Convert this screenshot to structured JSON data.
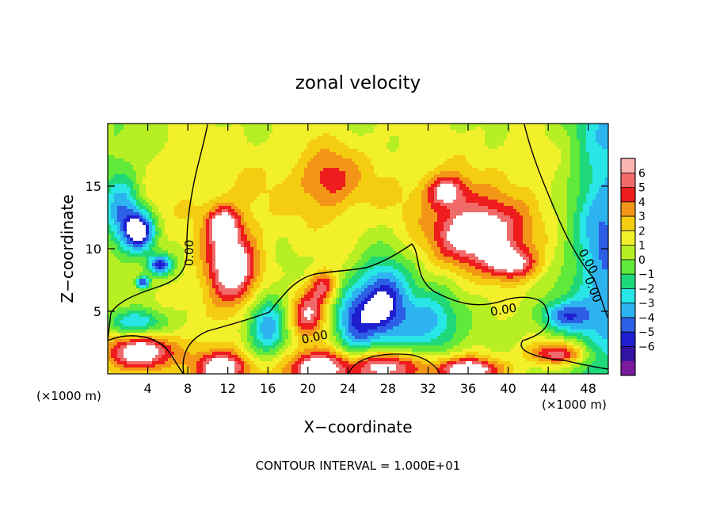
{
  "chart_data": {
    "type": "heatmap",
    "title": "zonal velocity",
    "xlabel": "X−coordinate",
    "ylabel": "Z−coordinate",
    "x_unit_left": "(×1000 m)",
    "x_unit_right": "(×1000 m)",
    "xlim": [
      0,
      50
    ],
    "ylim": [
      0,
      20
    ],
    "x_ticks": [
      4,
      8,
      12,
      16,
      20,
      24,
      28,
      32,
      36,
      40,
      44,
      48
    ],
    "y_ticks": [
      5,
      10,
      15
    ],
    "footer": "CONTOUR INTERVAL = 1.000E+01",
    "contour_labels": [
      "0.00",
      "0.00",
      "0.00",
      "0.00",
      "0.00"
    ],
    "colorbar": {
      "ticks": [
        6,
        5,
        4,
        3,
        2,
        1,
        0,
        -1,
        -2,
        -3,
        -4,
        -5,
        -6
      ],
      "tick_labels": [
        "6",
        "5",
        "4",
        "3",
        "2",
        "1",
        "0",
        "−1",
        "−2",
        "−3",
        "−4",
        "−5",
        "−6"
      ],
      "colors": [
        "#fbb4b4",
        "#f06a6a",
        "#ee1c1c",
        "#f39617",
        "#f5cd10",
        "#f2f02a",
        "#b6ef24",
        "#60e83a",
        "#1fd87a",
        "#28e6e6",
        "#2db4f0",
        "#2d5ee6",
        "#1f1fd0",
        "#3214a0",
        "#7a1a9c"
      ]
    },
    "features": [
      {
        "kind": "positive",
        "x": 12.3,
        "z": 8.5,
        "rx": 2.7,
        "rz": 3.4,
        "value": 6.5
      },
      {
        "kind": "positive",
        "x": 11.5,
        "z": 12.0,
        "rx": 1.6,
        "rz": 1.4,
        "value": 4.5
      },
      {
        "kind": "positive",
        "x": 20.0,
        "z": 4.8,
        "rx": 1.8,
        "rz": 1.8,
        "value": 4.8
      },
      {
        "kind": "positive",
        "x": 21.5,
        "z": 7.0,
        "rx": 1.4,
        "rz": 1.3,
        "value": 4.2
      },
      {
        "kind": "positive",
        "x": 37.0,
        "z": 11.2,
        "rx": 4.5,
        "rz": 2.6,
        "value": 6.8
      },
      {
        "kind": "positive",
        "x": 33.8,
        "z": 14.6,
        "rx": 2.0,
        "rz": 1.3,
        "value": 4.5
      },
      {
        "kind": "positive",
        "x": 40.5,
        "z": 8.8,
        "rx": 2.5,
        "rz": 1.3,
        "value": 5.0
      },
      {
        "kind": "positive",
        "x": 3.5,
        "z": 1.8,
        "rx": 3.6,
        "rz": 1.5,
        "value": 6.5
      },
      {
        "kind": "positive",
        "x": 11.2,
        "z": 0.4,
        "rx": 2.8,
        "rz": 1.4,
        "value": 6.5
      },
      {
        "kind": "positive",
        "x": 21.0,
        "z": 0.4,
        "rx": 3.6,
        "rz": 1.5,
        "value": 6.5
      },
      {
        "kind": "positive",
        "x": 28.0,
        "z": 0.6,
        "rx": 3.7,
        "rz": 1.3,
        "value": 6.0
      },
      {
        "kind": "positive",
        "x": 36.0,
        "z": 0.3,
        "rx": 3.4,
        "rz": 1.0,
        "value": 6.5
      },
      {
        "kind": "positive",
        "x": 45.0,
        "z": 1.6,
        "rx": 3.0,
        "rz": 0.9,
        "value": 5.0
      },
      {
        "kind": "positive",
        "x": 22.0,
        "z": 15.5,
        "rx": 3.0,
        "rz": 2.6,
        "value": 2.8
      },
      {
        "kind": "negative",
        "x": 3.2,
        "z": 11.4,
        "rx": 1.5,
        "rz": 1.6,
        "value": -7.0
      },
      {
        "kind": "negative",
        "x": 5.2,
        "z": 8.7,
        "rx": 1.2,
        "rz": 0.8,
        "value": -6.5
      },
      {
        "kind": "negative",
        "x": 3.5,
        "z": 7.3,
        "rx": 0.7,
        "rz": 0.5,
        "value": -6.5
      },
      {
        "kind": "negative",
        "x": 27.5,
        "z": 5.8,
        "rx": 2.6,
        "rz": 3.2,
        "value": -7.0
      },
      {
        "kind": "negative",
        "x": 1.5,
        "z": 13.0,
        "rx": 1.8,
        "rz": 3.0,
        "value": -3.5
      },
      {
        "kind": "negative",
        "x": 3.0,
        "z": 4.0,
        "rx": 3.0,
        "rz": 1.1,
        "value": -4.0
      },
      {
        "kind": "negative",
        "x": 16.0,
        "z": 4.0,
        "rx": 2.0,
        "rz": 2.5,
        "value": -4.5
      },
      {
        "kind": "negative",
        "x": 24.5,
        "z": 3.8,
        "rx": 2.0,
        "rz": 3.0,
        "value": -4.5
      },
      {
        "kind": "negative",
        "x": 32.0,
        "z": 4.0,
        "rx": 3.0,
        "rz": 2.5,
        "value": -4.5
      },
      {
        "kind": "negative",
        "x": 45.5,
        "z": 4.6,
        "rx": 2.5,
        "rz": 1.2,
        "value": -4.5
      },
      {
        "kind": "negative",
        "x": 49.8,
        "z": 12.0,
        "rx": 3.0,
        "rz": 9.0,
        "value": -3.0
      }
    ]
  }
}
